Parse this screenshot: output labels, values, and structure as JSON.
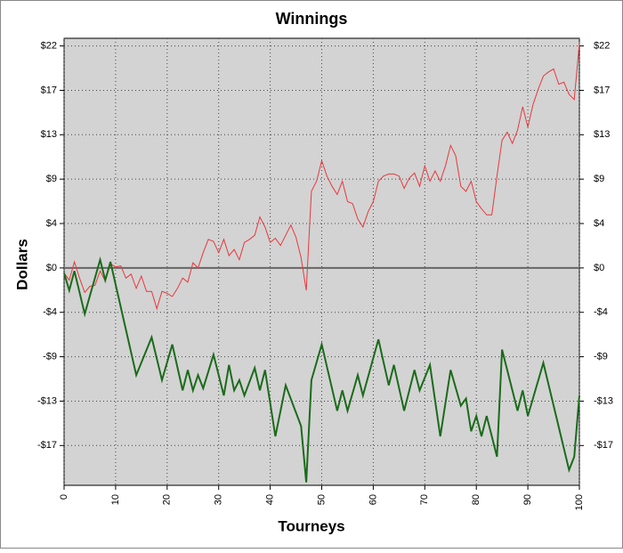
{
  "chart_data": {
    "type": "line",
    "title": "Winnings",
    "x_label": "Tourneys",
    "y_label": "Dollars",
    "xlim": [
      0,
      100
    ],
    "xticks": [
      0,
      10,
      20,
      30,
      40,
      50,
      60,
      70,
      80,
      90,
      100
    ],
    "ylim": [
      -21.3,
      22.5
    ],
    "yticks": [
      {
        "value": 21.75,
        "label": "$22"
      },
      {
        "value": 17.4,
        "label": "$17"
      },
      {
        "value": 13.05,
        "label": "$13"
      },
      {
        "value": 8.7,
        "label": "$9"
      },
      {
        "value": 4.35,
        "label": "$4"
      },
      {
        "value": 0,
        "label": "$0"
      },
      {
        "value": -4.35,
        "label": "-$4"
      },
      {
        "value": -8.7,
        "label": "-$9"
      },
      {
        "value": -13.05,
        "label": "-$13"
      },
      {
        "value": -17.4,
        "label": "-$17"
      }
    ],
    "grid": true,
    "series": [
      {
        "color": "#e8383d",
        "width": 1,
        "x": [
          0,
          1,
          2,
          3,
          4,
          5,
          6,
          7,
          8,
          9,
          10,
          11,
          12,
          13,
          14,
          15,
          16,
          17,
          18,
          19,
          20,
          21,
          22,
          23,
          24,
          25,
          26,
          27,
          28,
          29,
          30,
          31,
          32,
          33,
          34,
          35,
          36,
          37,
          38,
          39,
          40,
          41,
          42,
          43,
          44,
          45,
          46,
          47,
          48,
          49,
          50,
          51,
          52,
          53,
          54,
          55,
          56,
          57,
          58,
          59,
          60,
          61,
          62,
          63,
          64,
          65,
          66,
          67,
          68,
          69,
          70,
          71,
          72,
          73,
          74,
          75,
          76,
          77,
          78,
          79,
          80,
          81,
          82,
          83,
          84,
          85,
          86,
          87,
          88,
          89,
          90,
          91,
          92,
          93,
          94,
          95,
          96,
          97,
          98,
          99,
          100
        ],
        "values": [
          -0.5,
          -1.2,
          0.6,
          -1,
          -2.4,
          -1.8,
          -1.7,
          -0.3,
          -1.3,
          0.4,
          0.1,
          0.2,
          -1,
          -0.6,
          -2,
          -0.8,
          -2.3,
          -2.3,
          -4,
          -2.3,
          -2.5,
          -2.8,
          -2,
          -1,
          -1.4,
          0.5,
          0,
          1.5,
          2.8,
          2.6,
          1.5,
          2.8,
          1.2,
          1.8,
          0.8,
          2.5,
          2.8,
          3.2,
          5,
          4,
          2.5,
          2.9,
          2.2,
          3.2,
          4.2,
          3,
          1,
          -2.2,
          7.5,
          8.5,
          10.5,
          9,
          8,
          7.2,
          8.5,
          6.5,
          6.3,
          4.8,
          4,
          5.5,
          6.5,
          8.5,
          9,
          9.2,
          9.2,
          9,
          7.8,
          8.8,
          9.3,
          8,
          10,
          8.5,
          9.5,
          8.5,
          10,
          12,
          11,
          8,
          7.5,
          8.5,
          6.5,
          5.8,
          5.2,
          5.2,
          9,
          12.5,
          13.3,
          12.2,
          13.5,
          15.8,
          13.8,
          16,
          17.5,
          18.8,
          19.2,
          19.5,
          18,
          18.2,
          17,
          16.5,
          22
        ]
      },
      {
        "color": "#1a6b1a",
        "width": 2,
        "x": [
          0,
          1,
          2,
          4,
          7,
          8,
          9,
          14,
          17,
          19,
          21,
          23,
          24,
          25,
          26,
          27,
          29,
          31,
          32,
          33,
          34,
          35,
          37,
          38,
          39,
          41,
          43,
          46,
          47,
          48,
          50,
          53,
          54,
          55,
          57,
          58,
          61,
          63,
          64,
          66,
          68,
          69,
          71,
          73,
          75,
          77,
          78,
          79,
          80,
          81,
          82,
          84,
          85,
          88,
          89,
          90,
          93,
          98,
          99,
          100
        ],
        "values": [
          -0.5,
          -2.2,
          -0.3,
          -4.5,
          0.8,
          -1.2,
          0.6,
          -10.5,
          -6.8,
          -11,
          -7.5,
          -12,
          -10,
          -12,
          -10.5,
          -11.8,
          -8.5,
          -12.5,
          -9.5,
          -12,
          -11,
          -12.5,
          -9.8,
          -12,
          -10,
          -16.5,
          -11.5,
          -15.5,
          -21,
          -11,
          -7.5,
          -14,
          -12,
          -14,
          -10.5,
          -12.5,
          -7,
          -11.5,
          -9.5,
          -14,
          -10,
          -12,
          -9.5,
          -16.5,
          -10,
          -13.5,
          -12.8,
          -16,
          -14.5,
          -16.5,
          -14.5,
          -18.5,
          -8,
          -14,
          -12,
          -14.5,
          -9.3,
          -19.8,
          -18.5,
          -12.5
        ]
      }
    ]
  }
}
